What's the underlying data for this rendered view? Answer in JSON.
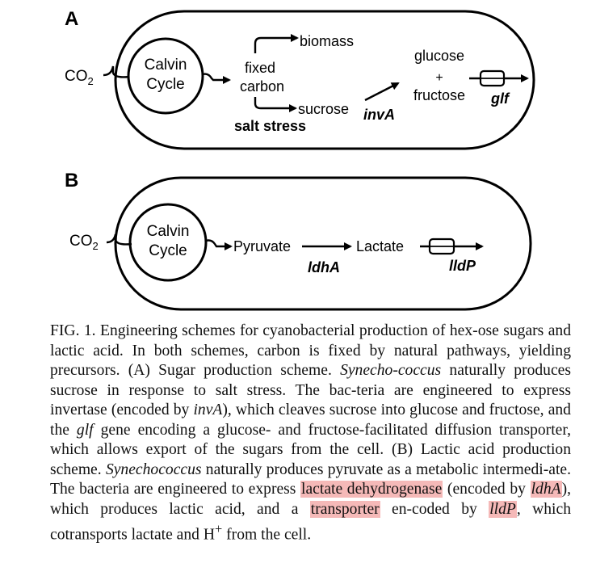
{
  "panel_a": {
    "letter": "A",
    "co2": "CO",
    "co2_sub": "2",
    "calvin_line1": "Calvin",
    "calvin_line2": "Cycle",
    "fixed_line1": "fixed",
    "fixed_line2": "carbon",
    "biomass": "biomass",
    "sucrose": "sucrose",
    "salt_stress": "salt stress",
    "inva": "invA",
    "glucose": "glucose",
    "plus": "+",
    "fructose": "fructose",
    "glf": "glf"
  },
  "panel_b": {
    "letter": "B",
    "co2": "CO",
    "co2_sub": "2",
    "calvin_line1": "Calvin",
    "calvin_line2": "Cycle",
    "pyruvate": "Pyruvate",
    "lactate": "Lactate",
    "ldha": "ldhA",
    "lldp": "lldP"
  },
  "caption": {
    "s1": "FIG. 1. Engineering schemes for cyanobacterial production of hex-ose sugars and lactic acid. In both schemes, carbon is fixed by natural pathways, yielding precursors. (A) Sugar production scheme. ",
    "syn1": "Synecho-coccus",
    "s2": " naturally produces sucrose in response to salt stress. The bac-teria are engineered to express invertase (encoded by ",
    "inva": "invA",
    "s3": "), which cleaves sucrose into glucose and fructose, and the ",
    "glf": "glf",
    "s4": " gene encoding a glucose- and fructose-facilitated diffusion transporter, which allows export of the sugars from the cell. (B) Lactic acid production scheme. ",
    "syn2": "Synechococcus",
    "s5": " naturally produces pyruvate as a metabolic intermedi-ate. The bacteria are engineered to express ",
    "hl1": "lactate dehydrogenase",
    "s6": " (encoded by ",
    "ldha": "ldhA",
    "s7": "), which produces lactic acid, and a ",
    "hl2": "transporter",
    "s8": " en-coded by ",
    "lldp": "lldP",
    "s9": ", which cotransports lactate and H",
    "sup": "+",
    "s10": " from the cell."
  },
  "colors": {
    "highlight": "#f5b9b8",
    "ink": "#000000"
  }
}
